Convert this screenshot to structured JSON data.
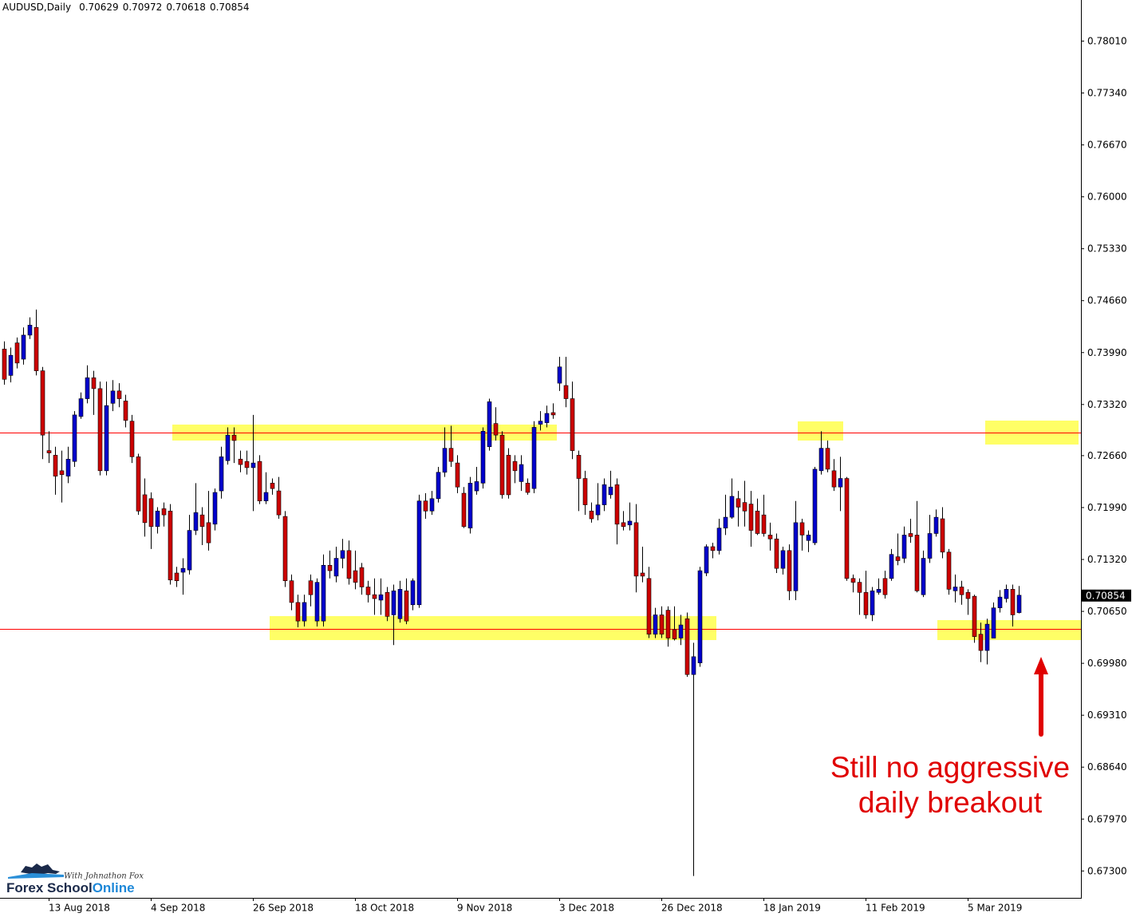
{
  "chart_data": {
    "type": "candlestick",
    "symbol": "AUDUSD,Daily",
    "up_color": "#0000cc",
    "down_color": "#cc0000",
    "wick_color": "#000000",
    "grid": false,
    "categories": [
      null,
      null,
      null,
      null,
      null,
      null,
      null,
      "13 Aug 2018",
      null,
      null,
      null,
      null,
      null,
      null,
      null,
      null,
      null,
      null,
      null,
      null,
      null,
      null,
      null,
      "4 Sep 2018",
      null,
      null,
      null,
      null,
      null,
      null,
      null,
      null,
      null,
      null,
      null,
      null,
      null,
      null,
      null,
      "26 Sep 2018",
      null,
      null,
      null,
      null,
      null,
      null,
      null,
      null,
      null,
      null,
      null,
      null,
      null,
      null,
      null,
      "18 Oct 2018",
      null,
      null,
      null,
      null,
      null,
      null,
      null,
      null,
      null,
      null,
      null,
      null,
      null,
      null,
      null,
      "9 Nov 2018",
      null,
      null,
      null,
      null,
      null,
      null,
      null,
      null,
      null,
      null,
      null,
      null,
      null,
      null,
      null,
      "3 Dec 2018",
      null,
      null,
      null,
      null,
      null,
      null,
      null,
      null,
      null,
      null,
      null,
      null,
      null,
      null,
      null,
      "26 Dec 2018",
      null,
      null,
      null,
      null,
      null,
      null,
      null,
      null,
      null,
      null,
      null,
      null,
      null,
      null,
      null,
      "18 Jan 2019",
      null,
      null,
      null,
      null,
      null,
      null,
      null,
      null,
      null,
      null,
      null,
      null,
      null,
      null,
      null,
      "11 Feb 2019",
      null,
      null,
      null,
      null,
      null,
      null,
      null,
      null,
      null,
      null,
      null,
      null,
      null,
      null,
      null,
      "5 Mar 2019",
      null,
      null,
      null,
      null,
      null,
      null,
      null,
      null
    ],
    "open": [
      0.7403,
      0.7369,
      0.7411,
      0.739,
      0.7421,
      0.7431,
      0.7375,
      0.7272,
      0.7266,
      0.7246,
      0.7239,
      0.7258,
      0.7316,
      0.7339,
      0.7366,
      0.7352,
      0.7246,
      0.7333,
      0.7349,
      0.7336,
      0.731,
      0.7264,
      0.7215,
      0.721,
      0.7174,
      0.7197,
      0.7194,
      0.7114,
      0.7115,
      0.7118,
      0.7169,
      0.7189,
      0.7179,
      0.7177,
      0.722,
      0.7259,
      0.7292,
      0.7261,
      0.7258,
      0.725,
      0.7258,
      0.7207,
      0.723,
      0.722,
      0.7187,
      0.7104,
      0.7076,
      0.7052,
      0.7104,
      0.7052,
      0.7052,
      0.7124,
      0.711,
      0.7133,
      0.7143,
      0.7117,
      0.7121,
      0.7096,
      0.7086,
      0.7079,
      0.7089,
      0.706,
      0.7055,
      0.7091,
      0.7073,
      0.7073,
      0.7207,
      0.7194,
      0.721,
      0.7244,
      0.7275,
      0.7256,
      0.7217,
      0.7172,
      0.722,
      0.723,
      0.7277,
      0.7307,
      0.7292,
      0.7266,
      0.7258,
      0.7232,
      0.723,
      0.7223,
      0.7306,
      0.7308,
      0.7321,
      0.7359,
      0.7356,
      0.7339,
      0.7266,
      0.7236,
      0.7194,
      0.7189,
      0.7202,
      0.7215,
      0.7228,
      0.7179,
      0.7176,
      0.7179,
      0.7114,
      0.7107,
      0.7035,
      0.706,
      0.7066,
      0.7041,
      0.703,
      0.7055,
      0.6983,
      0.6998,
      0.7114,
      0.7148,
      0.7143,
      0.7172,
      0.7186,
      0.721,
      0.7205,
      0.7203,
      0.7194,
      0.7189,
      0.7163,
      0.7158,
      0.712,
      0.7143,
      0.7091,
      0.7179,
      0.7156,
      0.7153,
      0.7246,
      0.7275,
      0.7246,
      0.7225,
      0.7236,
      0.7107,
      0.7102,
      0.7089,
      0.706,
      0.7089,
      0.7107,
      0.7107,
      0.7135,
      0.7133,
      0.7165,
      0.7163,
      0.7086,
      0.7133,
      0.7165,
      0.7184,
      0.7141,
      0.7091,
      0.7096,
      0.7089,
      0.7084,
      0.7035,
      0.7014,
      0.703,
      0.7069,
      0.7081,
      0.7093,
      0.70629
    ],
    "high": [
      0.7413,
      0.7405,
      0.7418,
      0.7431,
      0.7444,
      0.7454,
      0.738,
      0.7297,
      0.7277,
      0.7272,
      0.7277,
      0.7323,
      0.7347,
      0.7382,
      0.7375,
      0.7361,
      0.7361,
      0.7363,
      0.7359,
      0.7344,
      0.7318,
      0.7268,
      0.7236,
      0.7218,
      0.7199,
      0.7205,
      0.7203,
      0.7122,
      0.7133,
      0.7189,
      0.723,
      0.7199,
      0.722,
      0.7223,
      0.7277,
      0.7302,
      0.7302,
      0.7272,
      0.7272,
      0.7318,
      0.7266,
      0.7244,
      0.7236,
      0.7238,
      0.7194,
      0.7112,
      0.7086,
      0.7086,
      0.7112,
      0.7107,
      0.7138,
      0.7143,
      0.7148,
      0.7158,
      0.7156,
      0.7143,
      0.7127,
      0.7104,
      0.7107,
      0.7107,
      0.7096,
      0.7099,
      0.7104,
      0.7107,
      0.7107,
      0.7215,
      0.7217,
      0.722,
      0.7251,
      0.7302,
      0.7304,
      0.7266,
      0.7225,
      0.7238,
      0.7251,
      0.7302,
      0.7339,
      0.7328,
      0.7297,
      0.7275,
      0.7266,
      0.7266,
      0.7236,
      0.731,
      0.7323,
      0.733,
      0.7333,
      0.7393,
      0.7393,
      0.7361,
      0.7272,
      0.7246,
      0.7205,
      0.723,
      0.7236,
      0.7246,
      0.7236,
      0.7194,
      0.7205,
      0.7203,
      0.7148,
      0.7122,
      0.7069,
      0.7071,
      0.7071,
      0.7071,
      0.706,
      0.7063,
      0.7024,
      0.7122,
      0.7151,
      0.7153,
      0.7184,
      0.7215,
      0.7236,
      0.722,
      0.7233,
      0.722,
      0.721,
      0.7215,
      0.7179,
      0.7165,
      0.7148,
      0.7151,
      0.7207,
      0.7184,
      0.7169,
      0.7251,
      0.7297,
      0.7285,
      0.7261,
      0.7264,
      0.7238,
      0.7112,
      0.7107,
      0.7117,
      0.7096,
      0.7107,
      0.7117,
      0.7145,
      0.7165,
      0.7174,
      0.7184,
      0.7207,
      0.7143,
      0.7189,
      0.7196,
      0.7199,
      0.7145,
      0.7112,
      0.7104,
      0.7093,
      0.7086,
      0.705,
      0.7055,
      0.7076,
      0.7092,
      0.7099,
      0.7099,
      0.70972
    ],
    "low": [
      0.7357,
      0.736,
      0.7378,
      0.7383,
      0.7416,
      0.7369,
      0.7261,
      0.7256,
      0.7215,
      0.7205,
      0.723,
      0.7251,
      0.7313,
      0.7333,
      0.7318,
      0.724,
      0.724,
      0.7323,
      0.7328,
      0.7302,
      0.7256,
      0.7189,
      0.7161,
      0.7145,
      0.7165,
      0.7174,
      0.7099,
      0.7096,
      0.7086,
      0.7112,
      0.7163,
      0.715,
      0.7143,
      0.7169,
      0.721,
      0.7254,
      0.7256,
      0.7244,
      0.7241,
      0.7194,
      0.7203,
      0.7203,
      0.7215,
      0.7184,
      0.7096,
      0.7066,
      0.7044,
      0.7045,
      0.7071,
      0.7045,
      0.7045,
      0.7107,
      0.7102,
      0.712,
      0.7099,
      0.7093,
      0.7086,
      0.7076,
      0.706,
      0.706,
      0.7052,
      0.7021,
      0.705,
      0.7048,
      0.7066,
      0.7069,
      0.7184,
      0.7189,
      0.7205,
      0.7238,
      0.7251,
      0.7217,
      0.7172,
      0.7165,
      0.7215,
      0.7223,
      0.7272,
      0.7285,
      0.721,
      0.721,
      0.723,
      0.722,
      0.7215,
      0.7217,
      0.7298,
      0.7302,
      0.7313,
      0.7349,
      0.7328,
      0.7261,
      0.7194,
      0.7189,
      0.7179,
      0.7182,
      0.7194,
      0.721,
      0.7151,
      0.7169,
      0.7169,
      0.7089,
      0.7102,
      0.703,
      0.703,
      0.703,
      0.7019,
      0.7027,
      0.7021,
      0.698,
      0.6723,
      0.6993,
      0.711,
      0.7133,
      0.7138,
      0.7163,
      0.7184,
      0.7174,
      0.7174,
      0.7148,
      0.7163,
      0.7161,
      0.7143,
      0.7114,
      0.7112,
      0.7079,
      0.7079,
      0.7143,
      0.7141,
      0.715,
      0.7241,
      0.7244,
      0.722,
      0.7194,
      0.7104,
      0.7089,
      0.706,
      0.7055,
      0.7052,
      0.7086,
      0.7081,
      0.7104,
      0.7124,
      0.7127,
      0.7153,
      0.7089,
      0.7083,
      0.7127,
      0.7161,
      0.7133,
      0.7086,
      0.7076,
      0.7073,
      0.706,
      0.7024,
      0.6999,
      0.6996,
      0.703,
      0.7063,
      0.7076,
      0.7045,
      0.70618
    ],
    "close": [
      0.7364,
      0.7395,
      0.7385,
      0.7421,
      0.7434,
      0.7375,
      0.7292,
      0.7269,
      0.7239,
      0.7241,
      0.7261,
      0.7318,
      0.7339,
      0.7366,
      0.7352,
      0.7246,
      0.733,
      0.7349,
      0.7339,
      0.7311,
      0.7264,
      0.7194,
      0.7179,
      0.7174,
      0.7194,
      0.7189,
      0.7105,
      0.7104,
      0.712,
      0.7169,
      0.7192,
      0.7174,
      0.7153,
      0.7218,
      0.7264,
      0.7292,
      0.7285,
      0.7254,
      0.725,
      0.7256,
      0.7207,
      0.7218,
      0.7223,
      0.7189,
      0.7104,
      0.7076,
      0.7052,
      0.7076,
      0.7086,
      0.7102,
      0.7124,
      0.7117,
      0.7133,
      0.7143,
      0.7107,
      0.7102,
      0.7096,
      0.7086,
      0.7081,
      0.7086,
      0.7058,
      0.7091,
      0.7093,
      0.7052,
      0.7104,
      0.7207,
      0.7194,
      0.721,
      0.7244,
      0.7275,
      0.7258,
      0.7225,
      0.7174,
      0.723,
      0.7232,
      0.7297,
      0.7335,
      0.7292,
      0.7215,
      0.7215,
      0.7246,
      0.7254,
      0.7218,
      0.7302,
      0.731,
      0.732,
      0.7318,
      0.738,
      0.7339,
      0.7272,
      0.7236,
      0.7202,
      0.7184,
      0.7202,
      0.7228,
      0.7225,
      0.7177,
      0.7174,
      0.7181,
      0.711,
      0.711,
      0.7035,
      0.706,
      0.7035,
      0.703,
      0.7029,
      0.7047,
      0.6983,
      0.7006,
      0.7117,
      0.7148,
      0.7143,
      0.7172,
      0.7186,
      0.7213,
      0.7199,
      0.7194,
      0.7169,
      0.7165,
      0.7165,
      0.7158,
      0.712,
      0.7143,
      0.7091,
      0.7179,
      0.7163,
      0.7163,
      0.7248,
      0.7275,
      0.7248,
      0.7225,
      0.7236,
      0.7107,
      0.7102,
      0.7089,
      0.706,
      0.7091,
      0.7093,
      0.7086,
      0.7138,
      0.713,
      0.7163,
      0.7161,
      0.7091,
      0.7133,
      0.7165,
      0.7186,
      0.7141,
      0.7093,
      0.7096,
      0.7086,
      0.7081,
      0.7032,
      0.7014,
      0.7048,
      0.7069,
      0.7083,
      0.7093,
      0.706,
      0.70854
    ],
    "ylim": [
      0.66948,
      0.78535
    ],
    "yticks": [
      {
        "value": 0.7801,
        "label": "0.78010"
      },
      {
        "value": 0.7734,
        "label": "0.77340"
      },
      {
        "value": 0.7667,
        "label": "0.76670"
      },
      {
        "value": 0.76,
        "label": "0.76000"
      },
      {
        "value": 0.7533,
        "label": "0.75330"
      },
      {
        "value": 0.7466,
        "label": "0.74660"
      },
      {
        "value": 0.7399,
        "label": "0.73990"
      },
      {
        "value": 0.7332,
        "label": "0.73320"
      },
      {
        "value": 0.7266,
        "label": "0.72660"
      },
      {
        "value": 0.7199,
        "label": "0.71990"
      },
      {
        "value": 0.7132,
        "label": "0.71320"
      },
      {
        "value": 0.7065,
        "label": "0.70650"
      },
      {
        "value": 0.6998,
        "label": "0.69980"
      },
      {
        "value": 0.6931,
        "label": "0.69310"
      },
      {
        "value": 0.6864,
        "label": "0.68640"
      },
      {
        "value": 0.6797,
        "label": "0.67970"
      },
      {
        "value": 0.673,
        "label": "0.67300"
      }
    ],
    "hlines": [
      0.7295,
      0.7042
    ],
    "hline_color": "#ff0000",
    "annotation": [
      "Still no aggressive",
      "daily breakout"
    ]
  },
  "logo": {
    "tagline": "With Johnathon Fox",
    "name": "Forex School",
    "name_accent": "Online"
  }
}
